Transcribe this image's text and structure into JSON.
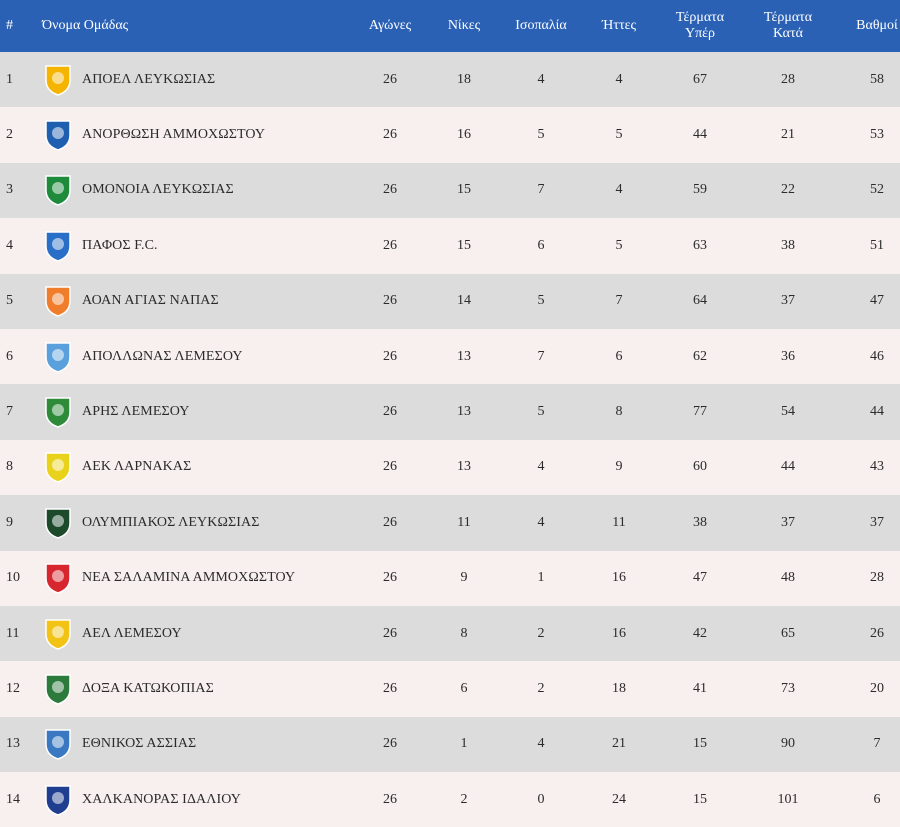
{
  "columns": {
    "pos": "#",
    "team": "Όνομα Ομάδας",
    "played": "Αγώνες",
    "wins": "Νίκες",
    "draws": "Ισοπαλία",
    "losses": "Ήττες",
    "gf_line1": "Τέρματα",
    "gf_line2": "Υπέρ",
    "ga_line1": "Τέρματα",
    "ga_line2": "Κατά",
    "points": "Βαθμοί"
  },
  "rows": [
    {
      "pos": "1",
      "team": "ΑΠΟΕΛ ΛΕΥΚΩΣΙΑΣ",
      "logo": "apoel-crest-icon",
      "color": "#f4b400",
      "played": "26",
      "wins": "18",
      "draws": "4",
      "losses": "4",
      "gf": "67",
      "ga": "28",
      "pts": "58"
    },
    {
      "pos": "2",
      "team": "ΑΝΟΡΘΩΣΗ ΑΜΜΟΧΩΣΤΟΥ",
      "logo": "anorthosis-crest-icon",
      "color": "#1f5fb0",
      "played": "26",
      "wins": "16",
      "draws": "5",
      "losses": "5",
      "gf": "44",
      "ga": "21",
      "pts": "53"
    },
    {
      "pos": "3",
      "team": "ΟΜΟΝΟΙΑ ΛΕΥΚΩΣΙΑΣ",
      "logo": "omonoia-crest-icon",
      "color": "#1e8a3c",
      "played": "26",
      "wins": "15",
      "draws": "7",
      "losses": "4",
      "gf": "59",
      "ga": "22",
      "pts": "52"
    },
    {
      "pos": "4",
      "team": "ΠΑΦΟΣ F.C.",
      "logo": "pafos-crest-icon",
      "color": "#2a6fc7",
      "played": "26",
      "wins": "15",
      "draws": "6",
      "losses": "5",
      "gf": "63",
      "ga": "38",
      "pts": "51"
    },
    {
      "pos": "5",
      "team": "ΑΟΑΝ ΑΓΙΑΣ ΝΑΠΑΣ",
      "logo": "aoan-crest-icon",
      "color": "#f07d2c",
      "played": "26",
      "wins": "14",
      "draws": "5",
      "losses": "7",
      "gf": "64",
      "ga": "37",
      "pts": "47"
    },
    {
      "pos": "6",
      "team": "ΑΠΟΛΛΩΝΑΣ ΛΕΜΕΣΟΥ",
      "logo": "apollon-crest-icon",
      "color": "#5aa0dc",
      "played": "26",
      "wins": "13",
      "draws": "7",
      "losses": "6",
      "gf": "62",
      "ga": "36",
      "pts": "46"
    },
    {
      "pos": "7",
      "team": "ΑΡΗΣ ΛΕΜΕΣΟΥ",
      "logo": "aris-crest-icon",
      "color": "#2e8b3a",
      "played": "26",
      "wins": "13",
      "draws": "5",
      "losses": "8",
      "gf": "77",
      "ga": "54",
      "pts": "44"
    },
    {
      "pos": "8",
      "team": "ΑΕΚ ΛΑΡΝΑΚΑΣ",
      "logo": "aek-crest-icon",
      "color": "#e8d21c",
      "played": "26",
      "wins": "13",
      "draws": "4",
      "losses": "9",
      "gf": "60",
      "ga": "44",
      "pts": "43"
    },
    {
      "pos": "9",
      "team": "ΟΛΥΜΠΙΑΚΟΣ ΛΕΥΚΩΣΙΑΣ",
      "logo": "olympiakos-crest-icon",
      "color": "#1c4a2a",
      "played": "26",
      "wins": "11",
      "draws": "4",
      "losses": "11",
      "gf": "38",
      "ga": "37",
      "pts": "37"
    },
    {
      "pos": "10",
      "team": "ΝΕΑ ΣΑΛΑΜΙΝΑ ΑΜΜΟΧΩΣΤΟΥ",
      "logo": "nea-salamina-crest-icon",
      "color": "#d8262e",
      "played": "26",
      "wins": "9",
      "draws": "1",
      "losses": "16",
      "gf": "47",
      "ga": "48",
      "pts": "28"
    },
    {
      "pos": "11",
      "team": "ΑΕΛ ΛΕΜΕΣΟΥ",
      "logo": "ael-crest-icon",
      "color": "#f2c315",
      "played": "26",
      "wins": "8",
      "draws": "2",
      "losses": "16",
      "gf": "42",
      "ga": "65",
      "pts": "26"
    },
    {
      "pos": "12",
      "team": "ΔΟΞΑ ΚΑΤΩΚΟΠΙΑΣ",
      "logo": "doxa-crest-icon",
      "color": "#2d7a3d",
      "played": "26",
      "wins": "6",
      "draws": "2",
      "losses": "18",
      "gf": "41",
      "ga": "73",
      "pts": "20"
    },
    {
      "pos": "13",
      "team": "ΕΘΝΙΚΟΣ ΑΣΣΙΑΣ",
      "logo": "ethnikos-crest-icon",
      "color": "#3a78c2",
      "played": "26",
      "wins": "1",
      "draws": "4",
      "losses": "21",
      "gf": "15",
      "ga": "90",
      "pts": "7"
    },
    {
      "pos": "14",
      "team": "ΧΑΛΚΑΝΟΡΑΣ ΙΔΑΛΙΟΥ",
      "logo": "chalkanoras-crest-icon",
      "color": "#1f3e8f",
      "played": "26",
      "wins": "2",
      "draws": "0",
      "losses": "24",
      "gf": "15",
      "ga": "101",
      "pts": "6"
    }
  ]
}
